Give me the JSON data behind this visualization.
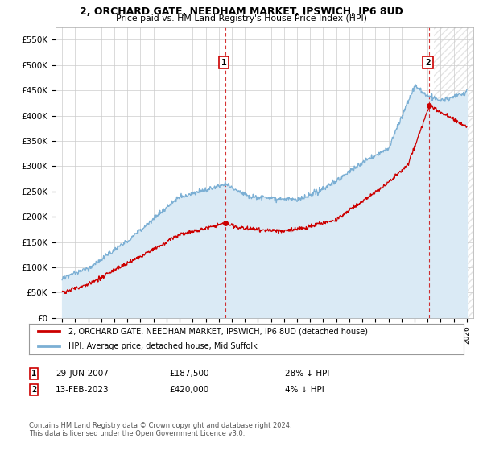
{
  "title": "2, ORCHARD GATE, NEEDHAM MARKET, IPSWICH, IP6 8UD",
  "subtitle": "Price paid vs. HM Land Registry's House Price Index (HPI)",
  "ylim": [
    0,
    575000
  ],
  "yticks": [
    0,
    50000,
    100000,
    150000,
    200000,
    250000,
    300000,
    350000,
    400000,
    450000,
    500000,
    550000
  ],
  "ytick_labels": [
    "£0",
    "£50K",
    "£100K",
    "£150K",
    "£200K",
    "£250K",
    "£300K",
    "£350K",
    "£400K",
    "£450K",
    "£500K",
    "£550K"
  ],
  "hpi_color": "#7bafd4",
  "hpi_fill_color": "#daeaf5",
  "sale_color": "#cc0000",
  "annotation_box_color": "#cc0000",
  "legend_label_sale": "2, ORCHARD GATE, NEEDHAM MARKET, IPSWICH, IP6 8UD (detached house)",
  "legend_label_hpi": "HPI: Average price, detached house, Mid Suffolk",
  "sale1_date_label": "29-JUN-2007",
  "sale1_price_label": "£187,500",
  "sale1_pct_label": "28% ↓ HPI",
  "sale2_date_label": "13-FEB-2023",
  "sale2_price_label": "£420,000",
  "sale2_pct_label": "4% ↓ HPI",
  "copyright_text": "Contains HM Land Registry data © Crown copyright and database right 2024.\nThis data is licensed under the Open Government Licence v3.0.",
  "sale1_year": 2007.49,
  "sale1_price": 187500,
  "sale2_year": 2023.12,
  "sale2_price": 420000,
  "background_color": "#ffffff",
  "plot_bg_color": "#ffffff",
  "grid_color": "#cccccc"
}
